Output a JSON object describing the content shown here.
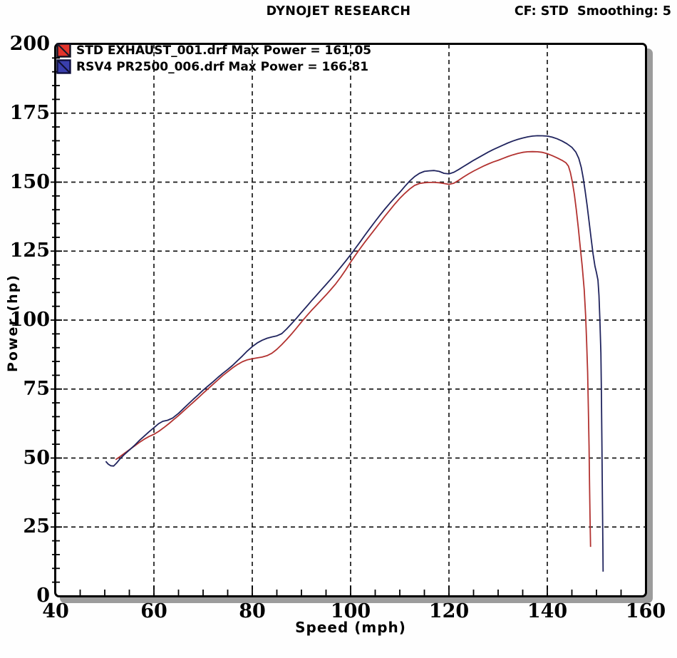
{
  "header": {
    "title": "DYNOJET RESEARCH",
    "cf_label": "CF: STD  Smoothing: 5"
  },
  "axes": {
    "x_title": "Speed (mph)",
    "y_title": "Power (hp)"
  },
  "chart_data": {
    "type": "line",
    "title": "DYNOJET RESEARCH",
    "xlabel": "Speed (mph)",
    "ylabel": "Power (hp)",
    "xlim": [
      40,
      160
    ],
    "ylim": [
      0,
      200
    ],
    "x_major_ticks": [
      40,
      60,
      80,
      100,
      120,
      140,
      160
    ],
    "y_major_ticks": [
      0,
      25,
      50,
      75,
      100,
      125,
      150,
      175,
      200
    ],
    "x_gridlines": [
      60,
      80,
      100,
      120,
      140
    ],
    "y_gridlines": [
      25,
      50,
      75,
      100,
      125,
      150,
      175
    ],
    "x_minor_step": 5,
    "y_minor_step": 5,
    "grid_style": "dashed",
    "legend_position": "top-left",
    "series": [
      {
        "name": "STD EXHAUST_001.drf",
        "label": "STD EXHAUST_001.drf Max Power = 161.05",
        "max_power": 161.05,
        "color": "#b23230",
        "swatch_color": "#e3342c",
        "points": [
          [
            52.2,
            49.4
          ],
          [
            53,
            50.4
          ],
          [
            54,
            51.7
          ],
          [
            55,
            53.0
          ],
          [
            56,
            54.3
          ],
          [
            57,
            55.6
          ],
          [
            58,
            56.8
          ],
          [
            59,
            57.8
          ],
          [
            60,
            58.6
          ],
          [
            61,
            59.7
          ],
          [
            62,
            61.0
          ],
          [
            63,
            62.4
          ],
          [
            64,
            63.9
          ],
          [
            65,
            65.4
          ],
          [
            66,
            67.0
          ],
          [
            67,
            68.6
          ],
          [
            68,
            70.2
          ],
          [
            69,
            71.8
          ],
          [
            70,
            73.5
          ],
          [
            71,
            75.1
          ],
          [
            72,
            76.7
          ],
          [
            73,
            78.3
          ],
          [
            74,
            79.9
          ],
          [
            75,
            81.3
          ],
          [
            76,
            82.7
          ],
          [
            77,
            83.9
          ],
          [
            78,
            84.9
          ],
          [
            79,
            85.6
          ],
          [
            80,
            86.0
          ],
          [
            81,
            86.3
          ],
          [
            82,
            86.6
          ],
          [
            83,
            87.1
          ],
          [
            84,
            88.0
          ],
          [
            85,
            89.4
          ],
          [
            86,
            91.1
          ],
          [
            87,
            93.0
          ],
          [
            88,
            95.0
          ],
          [
            89,
            97.1
          ],
          [
            90,
            99.3
          ],
          [
            91,
            101.4
          ],
          [
            92,
            103.4
          ],
          [
            93,
            105.3
          ],
          [
            94,
            107.2
          ],
          [
            95,
            109.1
          ],
          [
            96,
            111.1
          ],
          [
            97,
            113.2
          ],
          [
            98,
            115.6
          ],
          [
            99,
            118.2
          ],
          [
            100,
            121.0
          ],
          [
            101,
            123.6
          ],
          [
            102,
            126.1
          ],
          [
            103,
            128.5
          ],
          [
            104,
            130.8
          ],
          [
            105,
            133.1
          ],
          [
            106,
            135.4
          ],
          [
            107,
            137.7
          ],
          [
            108,
            139.9
          ],
          [
            109,
            142.1
          ],
          [
            110,
            144.1
          ],
          [
            111,
            145.9
          ],
          [
            112,
            147.5
          ],
          [
            113,
            148.8
          ],
          [
            114,
            149.5
          ],
          [
            115,
            149.8
          ],
          [
            116,
            149.9
          ],
          [
            117,
            149.9
          ],
          [
            118,
            149.8
          ],
          [
            119,
            149.5
          ],
          [
            120,
            149.2
          ],
          [
            121,
            149.6
          ],
          [
            122,
            150.7
          ],
          [
            123,
            151.9
          ],
          [
            124,
            153.0
          ],
          [
            125,
            154.0
          ],
          [
            126,
            154.9
          ],
          [
            127,
            155.8
          ],
          [
            128,
            156.6
          ],
          [
            129,
            157.3
          ],
          [
            130,
            157.9
          ],
          [
            131,
            158.6
          ],
          [
            132,
            159.3
          ],
          [
            133,
            159.9
          ],
          [
            134,
            160.4
          ],
          [
            135,
            160.8
          ],
          [
            136,
            161.0
          ],
          [
            137,
            161.05
          ],
          [
            138,
            161.0
          ],
          [
            139,
            160.8
          ],
          [
            140,
            160.3
          ],
          [
            141,
            159.6
          ],
          [
            142,
            158.8
          ],
          [
            143,
            157.9
          ],
          [
            143.8,
            157.0
          ],
          [
            144.3,
            155.8
          ],
          [
            144.7,
            153.5
          ],
          [
            145.1,
            150.0
          ],
          [
            145.5,
            145.5
          ],
          [
            145.9,
            140.0
          ],
          [
            146.3,
            133.5
          ],
          [
            146.7,
            126.5
          ],
          [
            147.1,
            119.5
          ],
          [
            147.5,
            111.0
          ],
          [
            147.8,
            101.5
          ],
          [
            148.0,
            92.0
          ],
          [
            148.2,
            81.0
          ],
          [
            148.35,
            68.0
          ],
          [
            148.5,
            54.0
          ],
          [
            148.6,
            40.0
          ],
          [
            148.7,
            28.0
          ],
          [
            148.8,
            17.8
          ]
        ]
      },
      {
        "name": "RSV4 PR2500_006.drf",
        "label": "RSV4 PR2500_006.drf Max Power = 166.81",
        "max_power": 166.81,
        "color": "#20245e",
        "swatch_color": "#3a3fae",
        "points": [
          [
            50.2,
            48.8
          ],
          [
            50.7,
            47.8
          ],
          [
            51.2,
            47.2
          ],
          [
            51.8,
            47.1
          ],
          [
            52.4,
            48.2
          ],
          [
            53.2,
            49.9
          ],
          [
            54,
            51.3
          ],
          [
            55,
            52.9
          ],
          [
            56,
            54.5
          ],
          [
            57,
            56.3
          ],
          [
            58,
            57.9
          ],
          [
            59,
            59.5
          ],
          [
            60,
            61.0
          ],
          [
            61,
            62.5
          ],
          [
            61.8,
            63.3
          ],
          [
            62.8,
            63.7
          ],
          [
            63.8,
            64.5
          ],
          [
            65,
            66.2
          ],
          [
            66,
            67.9
          ],
          [
            67,
            69.6
          ],
          [
            68,
            71.3
          ],
          [
            69,
            72.9
          ],
          [
            70,
            74.6
          ],
          [
            71,
            76.1
          ],
          [
            72,
            77.6
          ],
          [
            73,
            79.2
          ],
          [
            74,
            80.7
          ],
          [
            75,
            82.1
          ],
          [
            76,
            83.6
          ],
          [
            77,
            85.3
          ],
          [
            78,
            87.0
          ],
          [
            79,
            88.8
          ],
          [
            80,
            90.4
          ],
          [
            81,
            91.7
          ],
          [
            82,
            92.7
          ],
          [
            83,
            93.4
          ],
          [
            84,
            93.9
          ],
          [
            85,
            94.3
          ],
          [
            86,
            95.1
          ],
          [
            87,
            96.8
          ],
          [
            88,
            98.7
          ],
          [
            89,
            100.7
          ],
          [
            90,
            102.8
          ],
          [
            91,
            104.8
          ],
          [
            92,
            106.9
          ],
          [
            93,
            108.9
          ],
          [
            94,
            110.9
          ],
          [
            95,
            112.9
          ],
          [
            96,
            114.9
          ],
          [
            97,
            117.0
          ],
          [
            98,
            119.2
          ],
          [
            99,
            121.4
          ],
          [
            100,
            123.7
          ],
          [
            101,
            126.1
          ],
          [
            102,
            128.5
          ],
          [
            103,
            131.0
          ],
          [
            104,
            133.4
          ],
          [
            105,
            135.8
          ],
          [
            106,
            138.1
          ],
          [
            107,
            140.3
          ],
          [
            108,
            142.4
          ],
          [
            109,
            144.4
          ],
          [
            110,
            146.3
          ],
          [
            111,
            148.4
          ],
          [
            112,
            150.4
          ],
          [
            113,
            152.0
          ],
          [
            114,
            153.2
          ],
          [
            115,
            153.9
          ],
          [
            116,
            154.1
          ],
          [
            117,
            154.2
          ],
          [
            118,
            153.9
          ],
          [
            119,
            153.2
          ],
          [
            120,
            153.0
          ],
          [
            121,
            153.6
          ],
          [
            122,
            154.6
          ],
          [
            123,
            155.7
          ],
          [
            124,
            156.8
          ],
          [
            125,
            157.9
          ],
          [
            126,
            158.9
          ],
          [
            127,
            159.9
          ],
          [
            128,
            160.9
          ],
          [
            129,
            161.8
          ],
          [
            130,
            162.6
          ],
          [
            131,
            163.4
          ],
          [
            132,
            164.2
          ],
          [
            133,
            164.9
          ],
          [
            134,
            165.5
          ],
          [
            135,
            166.0
          ],
          [
            136,
            166.4
          ],
          [
            137,
            166.7
          ],
          [
            138,
            166.81
          ],
          [
            139,
            166.8
          ],
          [
            140,
            166.7
          ],
          [
            141,
            166.3
          ],
          [
            142,
            165.7
          ],
          [
            143,
            164.9
          ],
          [
            144,
            163.9
          ],
          [
            145,
            162.6
          ],
          [
            145.8,
            160.9
          ],
          [
            146.4,
            158.6
          ],
          [
            146.9,
            155.4
          ],
          [
            147.3,
            151.5
          ],
          [
            147.7,
            146.8
          ],
          [
            148.1,
            141.5
          ],
          [
            148.5,
            135.8
          ],
          [
            148.9,
            129.8
          ],
          [
            149.3,
            124.0
          ],
          [
            149.7,
            119.5
          ],
          [
            150.0,
            117.2
          ],
          [
            150.3,
            114.5
          ],
          [
            150.5,
            109.0
          ],
          [
            150.7,
            100.0
          ],
          [
            150.9,
            88.0
          ],
          [
            151.0,
            74.0
          ],
          [
            151.1,
            56.0
          ],
          [
            151.2,
            36.0
          ],
          [
            151.3,
            18.0
          ],
          [
            151.35,
            8.8
          ]
        ]
      }
    ]
  }
}
